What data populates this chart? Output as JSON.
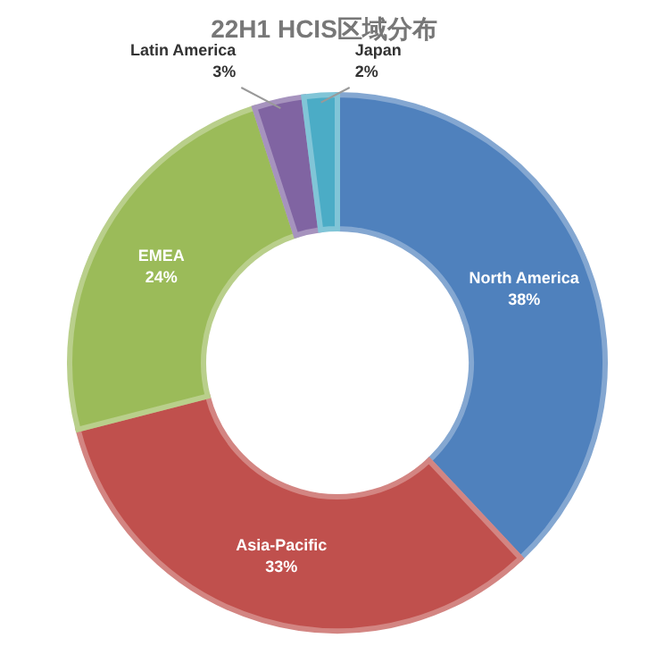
{
  "chart_data": {
    "type": "donut",
    "title": "22H1 HCIS区域分布",
    "categories": [
      "North America",
      "Asia-Pacific",
      "EMEA",
      "Latin America",
      "Japan"
    ],
    "values": [
      38,
      33,
      24,
      3,
      2
    ],
    "value_labels": [
      "38%",
      "33%",
      "24%",
      "3%",
      "2%"
    ],
    "colors": [
      "#4f81bd",
      "#c0504d",
      "#9bbb59",
      "#8064a2",
      "#4bacc6"
    ],
    "legend": false
  }
}
